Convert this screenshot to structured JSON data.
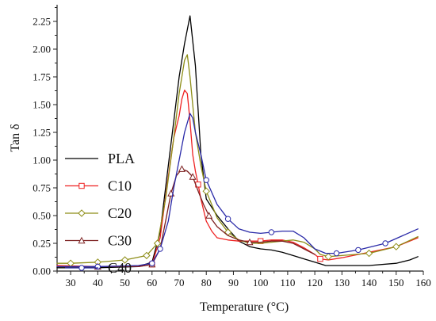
{
  "chart_data": {
    "type": "line",
    "title": "",
    "xlabel": "Temperature (°C)",
    "ylabel": "Tan δ",
    "xlim": [
      25,
      160
    ],
    "ylim": [
      0.0,
      2.4
    ],
    "xticks": [
      30,
      40,
      50,
      60,
      70,
      80,
      90,
      100,
      110,
      120,
      130,
      140,
      150,
      160
    ],
    "xtick_labels": [
      "30",
      "40",
      "50",
      "60",
      "70",
      "80",
      "90",
      "100",
      "110",
      "120",
      "130",
      "140",
      "150",
      "160"
    ],
    "yticks": [
      0.0,
      0.25,
      0.5,
      0.75,
      1.0,
      1.25,
      1.5,
      1.75,
      2.0,
      2.25
    ],
    "ytick_labels": [
      "0.00",
      "0.25",
      "0.50",
      "0.75",
      "1.00",
      "1.25",
      "1.50",
      "1.75",
      "2.00",
      "2.25"
    ],
    "grid": false,
    "legend_position": "left",
    "series": [
      {
        "name": "PLA",
        "color": "#000000",
        "marker": "none",
        "x": [
          25,
          40,
          55,
          60,
          63,
          66,
          68,
          70,
          72,
          74,
          76,
          78,
          80,
          84,
          88,
          92,
          96,
          100,
          104,
          108,
          112,
          116,
          120,
          124,
          130,
          140,
          150,
          155,
          158
        ],
        "y": [
          0.03,
          0.03,
          0.04,
          0.08,
          0.35,
          0.95,
          1.35,
          1.75,
          2.05,
          2.3,
          1.85,
          1.05,
          0.65,
          0.5,
          0.38,
          0.27,
          0.22,
          0.2,
          0.19,
          0.17,
          0.14,
          0.11,
          0.08,
          0.05,
          0.05,
          0.05,
          0.07,
          0.1,
          0.13
        ]
      },
      {
        "name": "C10",
        "color": "#ee2222",
        "marker": "square",
        "x": [
          25,
          40,
          55,
          60,
          63,
          66,
          68,
          70,
          71,
          72,
          73,
          74,
          75,
          76,
          77,
          78,
          80,
          82,
          84,
          88,
          92,
          96,
          100,
          104,
          108,
          112,
          116,
          120,
          122,
          125,
          130,
          140,
          150,
          158
        ],
        "y": [
          0.05,
          0.04,
          0.04,
          0.06,
          0.3,
          0.85,
          1.2,
          1.4,
          1.55,
          1.63,
          1.6,
          1.35,
          1.05,
          0.9,
          0.78,
          0.65,
          0.45,
          0.36,
          0.3,
          0.28,
          0.27,
          0.27,
          0.27,
          0.28,
          0.28,
          0.26,
          0.21,
          0.15,
          0.11,
          0.1,
          0.12,
          0.17,
          0.22,
          0.3
        ]
      },
      {
        "name": "C20",
        "color": "#8e8e18",
        "marker": "diamond",
        "x": [
          25,
          30,
          40,
          50,
          58,
          62,
          65,
          68,
          70,
          72,
          73,
          74,
          76,
          78,
          80,
          84,
          88,
          92,
          96,
          100,
          104,
          108,
          112,
          116,
          120,
          122,
          125,
          130,
          140,
          150,
          158
        ],
        "y": [
          0.07,
          0.07,
          0.08,
          0.1,
          0.14,
          0.25,
          0.65,
          1.2,
          1.6,
          1.9,
          1.95,
          1.75,
          1.25,
          0.95,
          0.72,
          0.48,
          0.35,
          0.28,
          0.25,
          0.25,
          0.26,
          0.27,
          0.28,
          0.26,
          0.2,
          0.15,
          0.13,
          0.14,
          0.16,
          0.22,
          0.31
        ]
      },
      {
        "name": "C30",
        "color": "#7b1f1f",
        "marker": "triangle",
        "x": [
          25,
          40,
          55,
          60,
          63,
          65,
          67,
          69,
          71,
          73,
          75,
          77,
          79,
          81,
          84,
          88,
          92,
          96,
          100,
          104,
          108,
          112,
          116,
          120
        ],
        "y": [
          0.04,
          0.04,
          0.04,
          0.06,
          0.2,
          0.45,
          0.7,
          0.86,
          0.92,
          0.9,
          0.85,
          0.72,
          0.6,
          0.5,
          0.4,
          0.32,
          0.28,
          0.26,
          0.26,
          0.27,
          0.27,
          0.25,
          0.2,
          0.15
        ]
      },
      {
        "name": "C40",
        "color": "#2a2aa8",
        "marker": "circle",
        "x": [
          25,
          40,
          55,
          60,
          63,
          66,
          68,
          70,
          72,
          74,
          75,
          76,
          78,
          80,
          84,
          88,
          92,
          96,
          100,
          104,
          108,
          112,
          116,
          120,
          124,
          128,
          136,
          146,
          158
        ],
        "y": [
          0.04,
          0.04,
          0.05,
          0.07,
          0.2,
          0.45,
          0.75,
          1.0,
          1.25,
          1.42,
          1.38,
          1.25,
          1.05,
          0.82,
          0.6,
          0.47,
          0.38,
          0.35,
          0.34,
          0.35,
          0.36,
          0.36,
          0.3,
          0.2,
          0.16,
          0.16,
          0.19,
          0.25,
          0.38
        ]
      }
    ]
  }
}
